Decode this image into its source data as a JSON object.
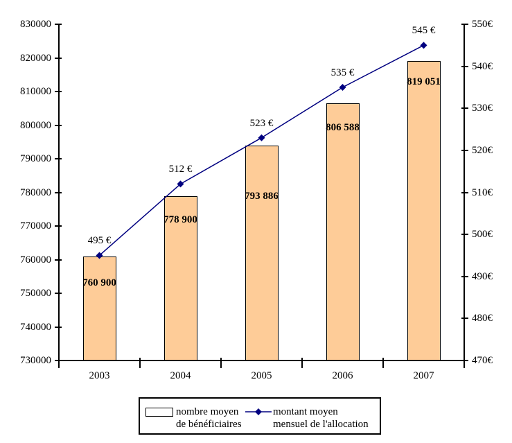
{
  "colors": {
    "bar_fill": "#FECC98",
    "bar_border": "#000000",
    "line": "#000080",
    "axis": "#000000",
    "text": "#000000",
    "background": "#FFFFFF"
  },
  "chart_data": {
    "type": "bar+line combo, dual y-axes",
    "categories": [
      "2003",
      "2004",
      "2005",
      "2006",
      "2007"
    ],
    "series": [
      {
        "name": "nombre moyen de bénéficiaires",
        "type": "bar",
        "axis": "left",
        "values": [
          760900,
          778900,
          793886,
          806588,
          819051
        ],
        "data_labels": [
          "760 900",
          "778 900",
          "793 886",
          "806 588",
          "819 051"
        ]
      },
      {
        "name": "montant moyen mensuel de l'allocation",
        "type": "line",
        "axis": "right",
        "marker": "diamond",
        "values": [
          495,
          512,
          523,
          535,
          545
        ],
        "data_labels": [
          "495 €",
          "512 €",
          "523 €",
          "535 €",
          "545 €"
        ]
      }
    ],
    "left_axis": {
      "min": 730000,
      "max": 830000,
      "step": 10000,
      "tick_labels": [
        "830000",
        "820000",
        "810000",
        "800000",
        "790000",
        "780000",
        "770000",
        "760000",
        "750000",
        "740000",
        "730000"
      ]
    },
    "right_axis": {
      "min": 470,
      "max": 550,
      "step": 10,
      "tick_labels": [
        "550€",
        "540€",
        "530€",
        "520€",
        "510€",
        "500€",
        "490€",
        "480€",
        "470€"
      ]
    },
    "grid": "off",
    "title": "",
    "legend": {
      "position": "bottom",
      "entries": [
        {
          "symbol": "bar-swatch",
          "lines": [
            "nombre moyen",
            "de bénéficiaires"
          ]
        },
        {
          "symbol": "line-with-diamond-marker",
          "lines": [
            "montant moyen",
            "mensuel de l'allocation"
          ]
        }
      ]
    }
  }
}
